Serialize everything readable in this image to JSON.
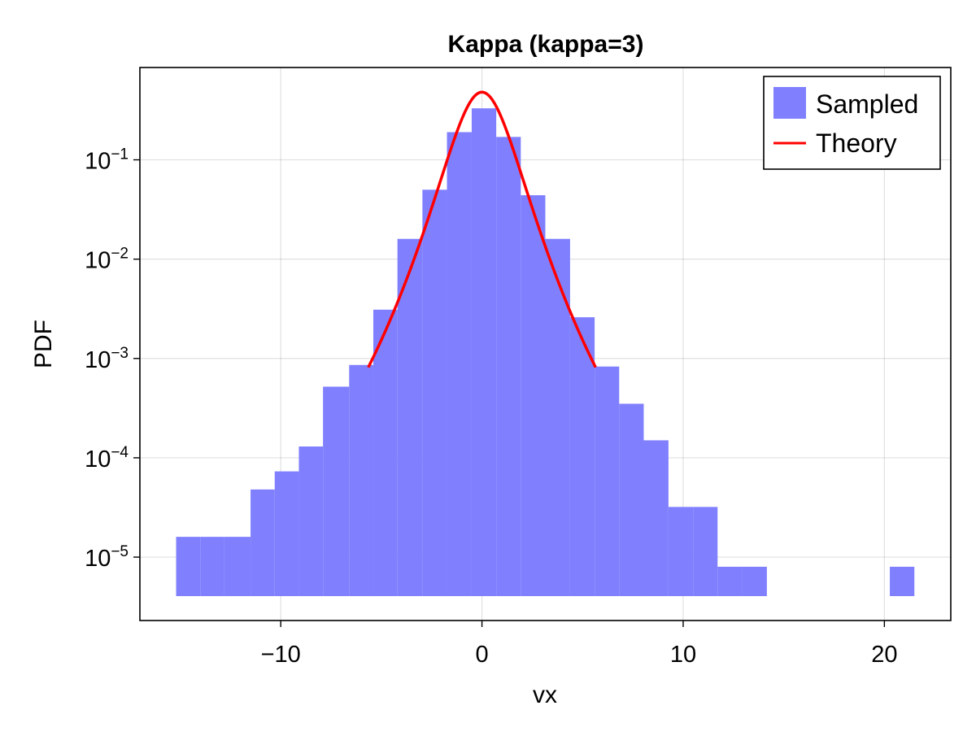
{
  "chart_data": {
    "type": "bar",
    "title": "Kappa (kappa=3)",
    "xlabel": "vx",
    "ylabel": "PDF",
    "yscale": "log",
    "xlim": [
      -17,
      23.3
    ],
    "ylim": [
      2.3e-06,
      0.85
    ],
    "grid": true,
    "legend_position": "top-right",
    "x_ticks": [
      {
        "value": -10,
        "label": "−10"
      },
      {
        "value": 0,
        "label": "0"
      },
      {
        "value": 10,
        "label": "10"
      },
      {
        "value": 20,
        "label": "20"
      }
    ],
    "y_ticks": [
      {
        "value": 0.1,
        "base": "10",
        "exp": "−1"
      },
      {
        "value": 0.01,
        "base": "10",
        "exp": "−2"
      },
      {
        "value": 0.001,
        "base": "10",
        "exp": "−3"
      },
      {
        "value": 0.0001,
        "base": "10",
        "exp": "−4"
      },
      {
        "value": 1e-05,
        "base": "10",
        "exp": "−5"
      }
    ],
    "histogram": {
      "name": "Sampled",
      "color": "#8080ff",
      "bin_edges": [
        -15.2,
        -14.0,
        -12.8,
        -11.5,
        -10.3,
        -9.1,
        -7.9,
        -6.6,
        -5.4,
        -4.2,
        -2.96,
        -1.74,
        -0.51,
        0.71,
        1.93,
        3.15,
        4.38,
        5.6,
        6.82,
        8.04,
        9.27,
        10.5,
        11.71,
        12.93,
        14.16,
        15.38,
        16.6,
        17.82,
        19.05,
        20.27,
        21.49
      ],
      "values": [
        1.6e-05,
        1.6e-05,
        1.6e-05,
        4.8e-05,
        7.3e-05,
        0.00013,
        0.00052,
        0.00086,
        0.0031,
        0.016,
        0.05,
        0.19,
        0.33,
        0.17,
        0.044,
        0.016,
        0.0026,
        0.00083,
        0.00035,
        0.00015,
        3.2e-05,
        3.2e-05,
        8e-06,
        8e-06,
        0,
        0,
        0,
        0,
        0,
        8e-06
      ]
    },
    "series": [
      {
        "name": "Theory",
        "type": "line",
        "color": "#ff0000",
        "x_range": [
          -5.65,
          5.65
        ],
        "peak": 0.48,
        "kappa": 3,
        "width": 1.2
      }
    ]
  }
}
